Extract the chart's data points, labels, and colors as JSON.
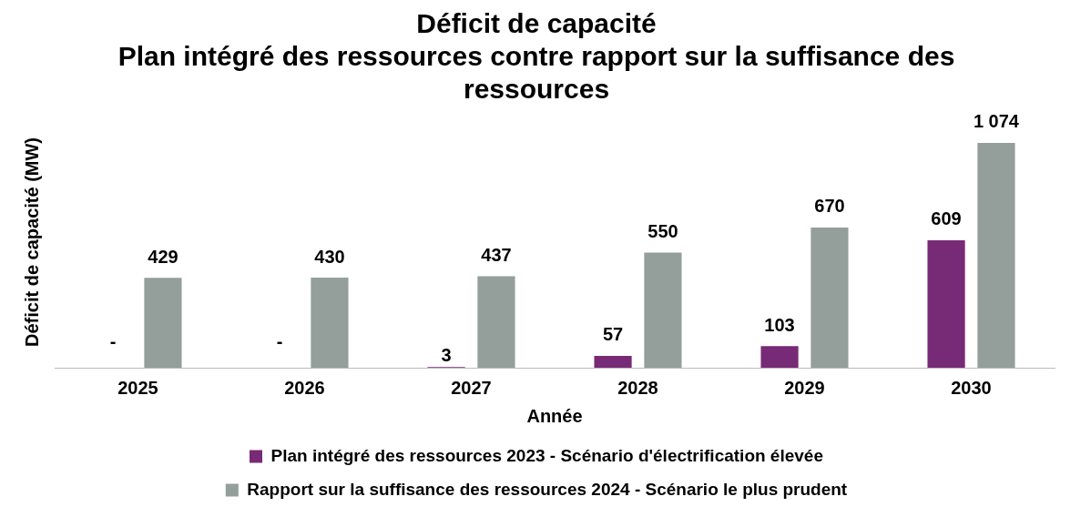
{
  "chart_data": {
    "type": "bar",
    "title": "Déficit de capacité",
    "subtitle": "Plan intégré des ressources contre rapport sur la suffisance des ressources",
    "xlabel": "Année",
    "ylabel": "Déficit de capacité (MW)",
    "categories": [
      "2025",
      "2026",
      "2027",
      "2028",
      "2029",
      "2030"
    ],
    "series": [
      {
        "name": "Plan intégré des ressources 2023 - Scénario d'électrification élevée",
        "color": "#772a76",
        "values": [
          0,
          0,
          3,
          57,
          103,
          609
        ],
        "value_labels": [
          null,
          null,
          "3",
          "57",
          "103",
          "609"
        ]
      },
      {
        "name": "Rapport sur la suffisance des ressources 2024 - Scénario le plus prudent",
        "color": "#949e9b",
        "values": [
          429,
          430,
          437,
          550,
          670,
          1074
        ],
        "value_labels": [
          "429",
          "430",
          "437",
          "550",
          "670",
          "1 074"
        ]
      }
    ],
    "annotations": [
      {
        "text": "-",
        "x": "2025",
        "y": 0
      },
      {
        "text": "-",
        "x": "2026",
        "y": 0
      }
    ],
    "legend": "bottom",
    "tick_labels": "x",
    "grid": false
  }
}
